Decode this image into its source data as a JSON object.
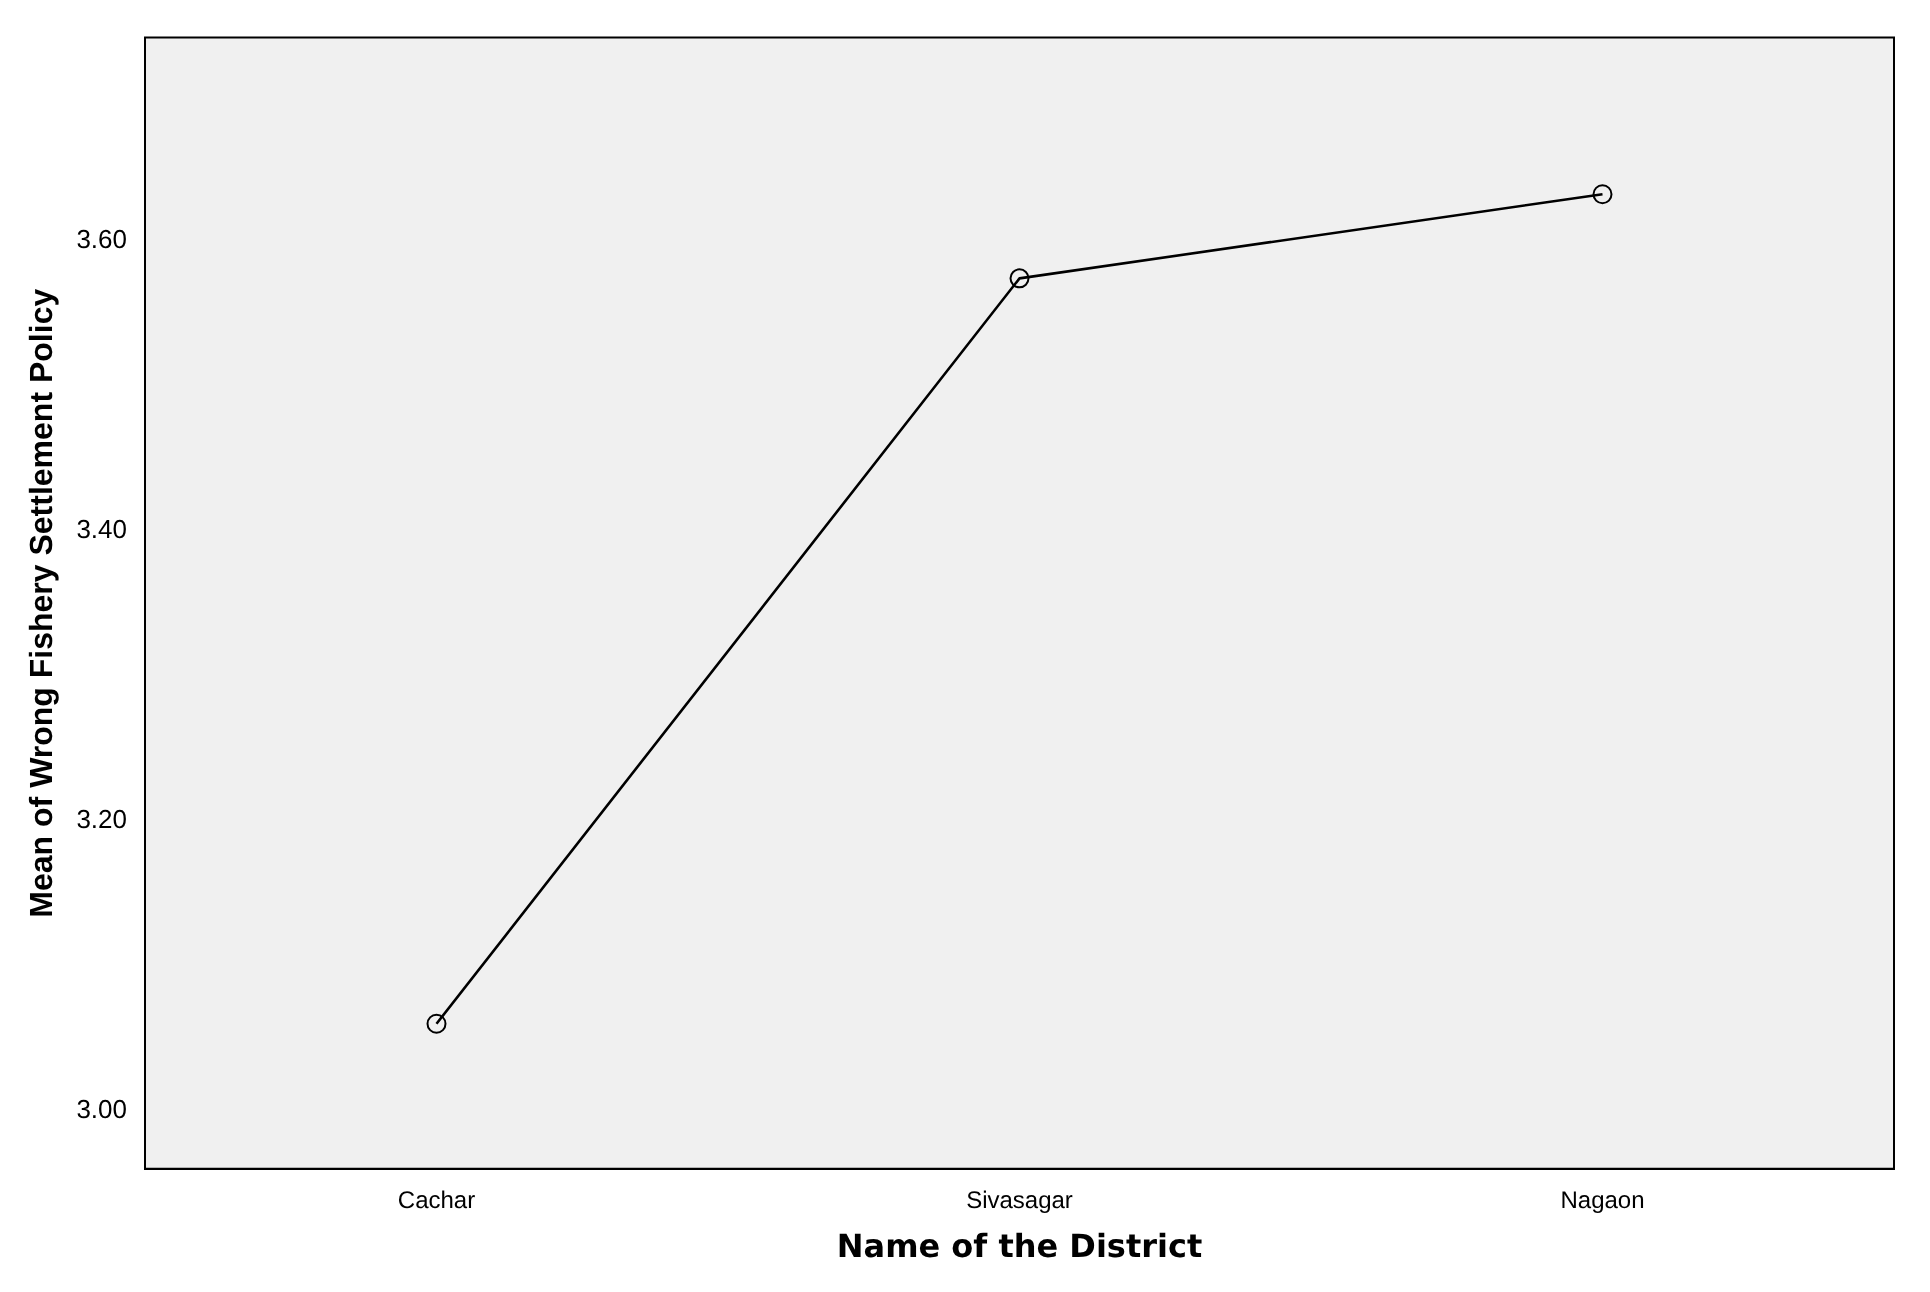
{
  "chart_data": {
    "type": "line",
    "xlabel": "Name of the District",
    "ylabel": "Mean of Wrong Fishery Settlement Policy",
    "categories": [
      "Cachar",
      "Sivasagar",
      "Nagaon"
    ],
    "series": [
      {
        "color": "#000000",
        "values": [
          3.06,
          3.574,
          3.632
        ]
      }
    ],
    "ylim": [
      2.96,
      3.74
    ],
    "yticks": [
      {
        "value": 3.0,
        "label": "3.00"
      },
      {
        "value": 3.2,
        "label": "3.20"
      },
      {
        "value": 3.4,
        "label": "3.40"
      },
      {
        "value": 3.6,
        "label": "3.60"
      }
    ],
    "grid": false,
    "legend": false,
    "marker": "circle",
    "line_style": "solid"
  }
}
